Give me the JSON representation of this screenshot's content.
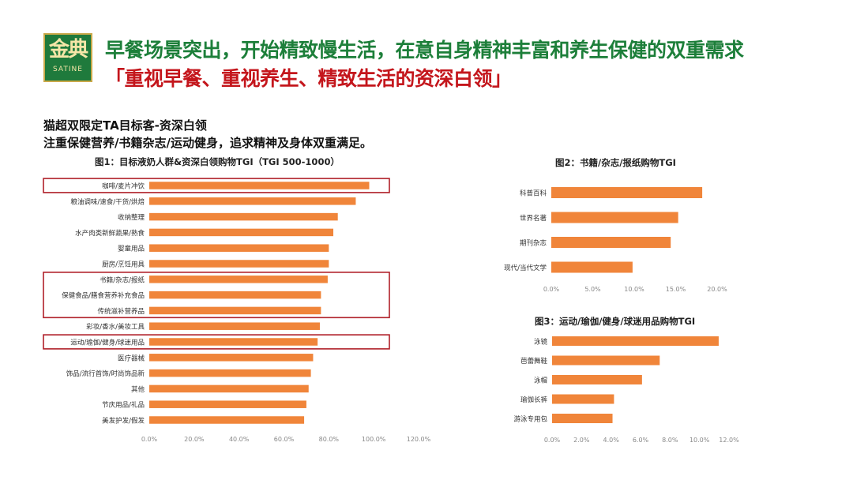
{
  "brand": {
    "logo_cn": "金典",
    "logo_en": "SATINE"
  },
  "header": {
    "title": "早餐场景突出，开始精致慢生活，在意自身精神丰富和养生保健的双重需求",
    "subtitle": "「重视早餐、重视养生、精致生活的资深白领」"
  },
  "intro": {
    "line1": "猫超双限定TA目标客-资深白领",
    "line2": "注重保健营养/书籍杂志/运动健身，追求精神及身体双重满足。"
  },
  "colors": {
    "bar": "#f0853a",
    "highlight_box": "#b0212a",
    "axis_text": "#888888"
  },
  "chart_data": [
    {
      "type": "bar",
      "orientation": "horizontal",
      "title": "图1：目标液奶人群&资深白领购物TGI（TGI 500-1000）",
      "categories": [
        "咖啡/麦片冲饮",
        "粮油调味/速食/干货/烘焙",
        "收纳整理",
        "水产肉类新鲜蔬果/熟食",
        "婴童用品",
        "厨房/烹饪用具",
        "书籍/杂志/报纸",
        "保健食品/膳食营养补充食品",
        "传统滋补营养品",
        "彩妆/香水/美妆工具",
        "运动/瑜伽/健身/球迷用品",
        "医疗器械",
        "饰品/流行首饰/时尚饰品新",
        "其他",
        "节庆用品/礼品",
        "美发护发/假发"
      ],
      "values": [
        98,
        92,
        84,
        82,
        80,
        80,
        79.5,
        76.5,
        76.5,
        76,
        75,
        73,
        72,
        71,
        70,
        69
      ],
      "ticks": [
        "0.0%",
        "20.0%",
        "40.0%",
        "60.0%",
        "80.0%",
        "100.0%",
        "120.0%"
      ],
      "xlim": [
        0,
        120
      ],
      "highlight_groups": [
        [
          0
        ],
        [
          6,
          7,
          8
        ],
        [
          10
        ]
      ]
    },
    {
      "type": "bar",
      "orientation": "horizontal",
      "title": "图2：书籍/杂志/报纸购物TGI",
      "categories": [
        "科普百科",
        "世界名著",
        "期刊杂志",
        "现代/当代文学"
      ],
      "values": [
        18.2,
        15.3,
        14.4,
        9.8
      ],
      "ticks": [
        "0.0%",
        "5.0%",
        "10.0%",
        "15.0%",
        "20.0%"
      ],
      "xlim": [
        0,
        20
      ]
    },
    {
      "type": "bar",
      "orientation": "horizontal",
      "title": "图3：运动/瑜伽/健身/球迷用品购物TGI",
      "categories": [
        "泳镜",
        "芭蕾舞鞋",
        "泳帽",
        "瑜伽长裤",
        "游泳专用包"
      ],
      "values": [
        11.3,
        7.3,
        6.1,
        4.2,
        4.1
      ],
      "ticks": [
        "0.0%",
        "2.0%",
        "4.0%",
        "6.0%",
        "8.0%",
        "10.0%",
        "12.0%"
      ],
      "xlim": [
        0,
        12
      ]
    }
  ]
}
